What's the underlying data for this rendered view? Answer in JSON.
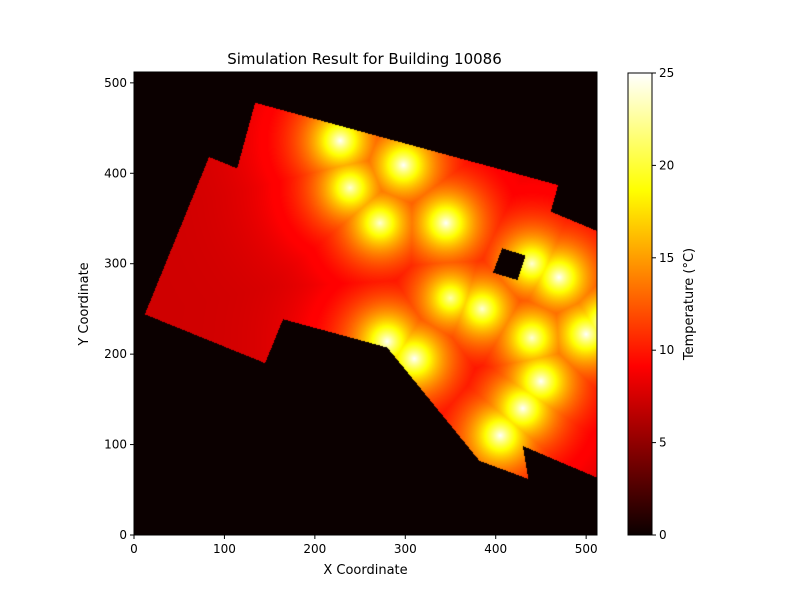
{
  "chart_data": {
    "type": "heatmap",
    "title": "Simulation Result for Building 10086",
    "xlabel": "X Coordinate",
    "ylabel": "Y Coordinate",
    "xlim": [
      0,
      512
    ],
    "ylim": [
      0,
      512
    ],
    "x_ticks": [
      0,
      100,
      200,
      300,
      400,
      500
    ],
    "y_ticks": [
      0,
      100,
      200,
      300,
      400,
      500
    ],
    "colormap": "hot",
    "colorbar": {
      "label": "Temperature (°C)",
      "range": [
        0,
        25
      ],
      "ticks": [
        0,
        5,
        10,
        15,
        20,
        25
      ]
    },
    "background_value": 0,
    "wall_value": 7,
    "building_polygons": [
      [
        [
          134,
          478
        ],
        [
          469,
          387
        ],
        [
          410,
          172
        ],
        [
          75,
          263
        ]
      ],
      [
        [
          83,
          418
        ],
        [
          12,
          244
        ],
        [
          145,
          190
        ],
        [
          216,
          364
        ]
      ],
      [
        [
          460,
          358
        ],
        [
          596,
          301
        ],
        [
          520,
          60
        ],
        [
          384,
          118
        ]
      ],
      [
        [
          225,
          275
        ],
        [
          410,
          220
        ],
        [
          436,
          62
        ],
        [
          382,
          82
        ]
      ]
    ],
    "courtyard_polygons": [
      [
        [
          407,
          317
        ],
        [
          397,
          290
        ],
        [
          424,
          282
        ],
        [
          433,
          309
        ]
      ]
    ],
    "heat_sources": [
      {
        "x": 228,
        "y": 436,
        "value": 25
      },
      {
        "x": 272,
        "y": 345,
        "value": 24
      },
      {
        "x": 298,
        "y": 409,
        "value": 25
      },
      {
        "x": 239,
        "y": 384,
        "value": 24
      },
      {
        "x": 280,
        "y": 214,
        "value": 25
      },
      {
        "x": 310,
        "y": 195,
        "value": 25
      },
      {
        "x": 350,
        "y": 262,
        "value": 23
      },
      {
        "x": 385,
        "y": 250,
        "value": 24
      },
      {
        "x": 405,
        "y": 110,
        "value": 25
      },
      {
        "x": 440,
        "y": 218,
        "value": 24
      },
      {
        "x": 470,
        "y": 285,
        "value": 25
      },
      {
        "x": 500,
        "y": 222,
        "value": 25
      },
      {
        "x": 450,
        "y": 170,
        "value": 25
      },
      {
        "x": 345,
        "y": 345,
        "value": 25
      },
      {
        "x": 440,
        "y": 300,
        "value": 24
      },
      {
        "x": 520,
        "y": 235,
        "value": 25
      },
      {
        "x": 430,
        "y": 140,
        "value": 25
      }
    ]
  }
}
